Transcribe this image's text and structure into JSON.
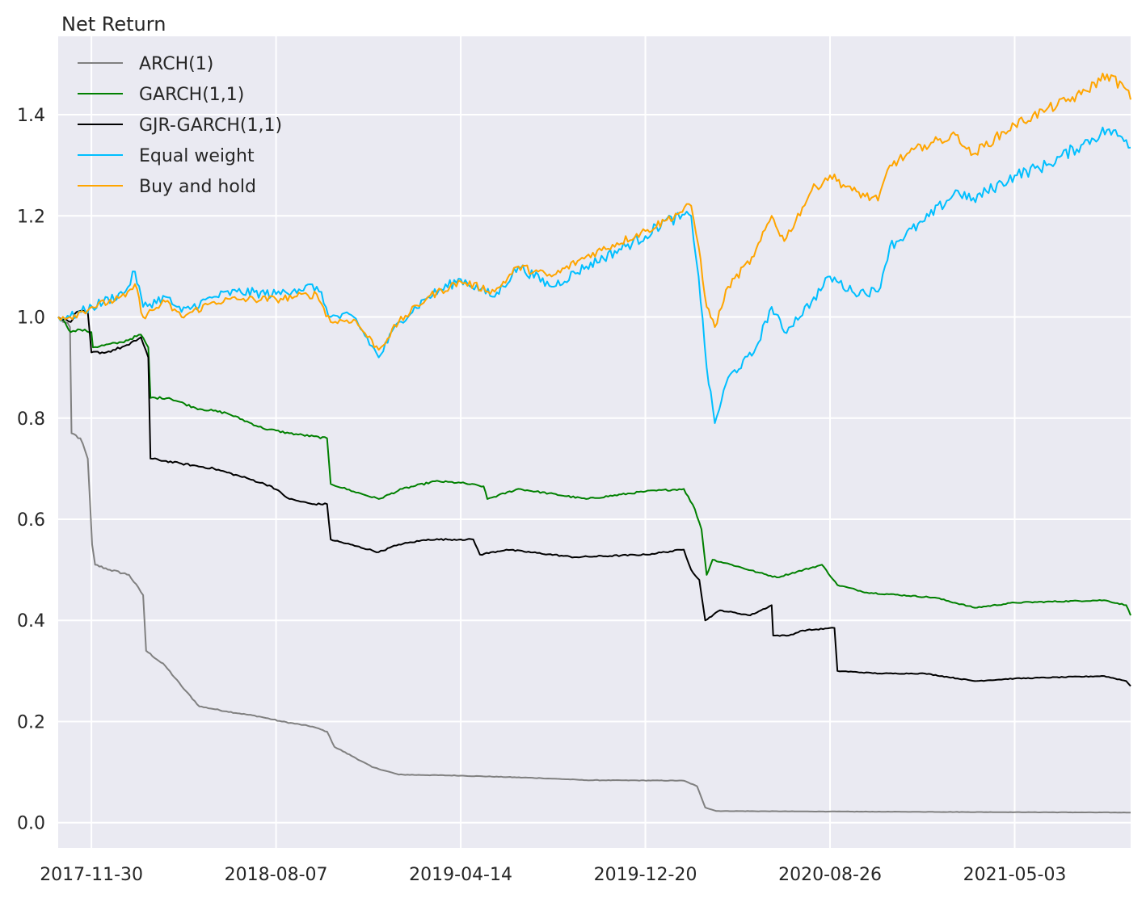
{
  "chart_data": {
    "type": "line",
    "title": "Net Return",
    "xlabel": "",
    "ylabel": "",
    "x_ticks": [
      "2017-11-30",
      "2018-08-07",
      "2019-04-14",
      "2019-12-20",
      "2020-08-26",
      "2021-05-03"
    ],
    "xlim": [
      "2017-10-16",
      "2021-10-07"
    ],
    "y_ticks": [
      "0.0",
      "0.2",
      "0.4",
      "0.6",
      "0.8",
      "1.0",
      "1.2",
      "1.4"
    ],
    "ylim": [
      -0.05,
      1.555
    ],
    "grid": true,
    "legend_position": "top-left",
    "series": [
      {
        "name": "ARCH(1)",
        "color": "#808080",
        "points": [
          [
            "2017-10-16",
            1.0
          ],
          [
            "2017-11-01",
            0.98
          ],
          [
            "2017-11-03",
            0.77
          ],
          [
            "2017-11-15",
            0.76
          ],
          [
            "2017-11-25",
            0.72
          ],
          [
            "2017-12-01",
            0.55
          ],
          [
            "2017-12-05",
            0.51
          ],
          [
            "2017-12-25",
            0.5
          ],
          [
            "2018-01-20",
            0.49
          ],
          [
            "2018-02-08",
            0.45
          ],
          [
            "2018-02-12",
            0.34
          ],
          [
            "2018-03-10",
            0.31
          ],
          [
            "2018-04-01",
            0.27
          ],
          [
            "2018-04-25",
            0.23
          ],
          [
            "2018-06-01",
            0.22
          ],
          [
            "2018-07-15",
            0.21
          ],
          [
            "2018-08-15",
            0.2
          ],
          [
            "2018-09-25",
            0.19
          ],
          [
            "2018-10-15",
            0.18
          ],
          [
            "2018-10-25",
            0.15
          ],
          [
            "2018-11-20",
            0.13
          ],
          [
            "2018-12-15",
            0.11
          ],
          [
            "2019-01-20",
            0.095
          ],
          [
            "2019-04-14",
            0.093
          ],
          [
            "2019-08-01",
            0.088
          ],
          [
            "2019-10-01",
            0.084
          ],
          [
            "2020-02-10",
            0.083
          ],
          [
            "2020-02-28",
            0.072
          ],
          [
            "2020-03-10",
            0.03
          ],
          [
            "2020-03-25",
            0.023
          ],
          [
            "2020-08-26",
            0.022
          ],
          [
            "2021-03-01",
            0.021
          ],
          [
            "2021-10-07",
            0.02
          ]
        ]
      },
      {
        "name": "GARCH(1,1)",
        "color": "#008000",
        "points": [
          [
            "2017-10-16",
            1.0
          ],
          [
            "2017-10-25",
            0.99
          ],
          [
            "2017-11-02",
            0.97
          ],
          [
            "2017-11-15",
            0.975
          ],
          [
            "2017-11-30",
            0.97
          ],
          [
            "2017-12-02",
            0.94
          ],
          [
            "2018-01-10",
            0.95
          ],
          [
            "2018-02-05",
            0.965
          ],
          [
            "2018-02-15",
            0.94
          ],
          [
            "2018-02-18",
            0.84
          ],
          [
            "2018-03-15",
            0.84
          ],
          [
            "2018-04-20",
            0.82
          ],
          [
            "2018-06-01",
            0.81
          ],
          [
            "2018-07-20",
            0.78
          ],
          [
            "2018-08-25",
            0.77
          ],
          [
            "2018-10-15",
            0.76
          ],
          [
            "2018-10-20",
            0.67
          ],
          [
            "2018-11-20",
            0.655
          ],
          [
            "2018-12-24",
            0.64
          ],
          [
            "2019-01-25",
            0.66
          ],
          [
            "2019-03-10",
            0.675
          ],
          [
            "2019-04-14",
            0.672
          ],
          [
            "2019-05-15",
            0.665
          ],
          [
            "2019-05-20",
            0.64
          ],
          [
            "2019-07-01",
            0.66
          ],
          [
            "2019-10-01",
            0.64
          ],
          [
            "2019-12-20",
            0.655
          ],
          [
            "2020-02-10",
            0.66
          ],
          [
            "2020-02-25",
            0.62
          ],
          [
            "2020-03-05",
            0.58
          ],
          [
            "2020-03-12",
            0.49
          ],
          [
            "2020-03-20",
            0.52
          ],
          [
            "2020-04-15",
            0.51
          ],
          [
            "2020-05-20",
            0.495
          ],
          [
            "2020-06-15",
            0.485
          ],
          [
            "2020-08-15",
            0.51
          ],
          [
            "2020-09-05",
            0.47
          ],
          [
            "2020-10-15",
            0.455
          ],
          [
            "2021-01-15",
            0.445
          ],
          [
            "2021-03-10",
            0.425
          ],
          [
            "2021-05-03",
            0.435
          ],
          [
            "2021-09-01",
            0.44
          ],
          [
            "2021-10-01",
            0.43
          ],
          [
            "2021-10-07",
            0.41
          ]
        ]
      },
      {
        "name": "GJR-GARCH(1,1)",
        "color": "#000000",
        "points": [
          [
            "2017-10-16",
            1.0
          ],
          [
            "2017-11-02",
            0.99
          ],
          [
            "2017-11-10",
            1.01
          ],
          [
            "2017-11-25",
            1.01
          ],
          [
            "2017-11-30",
            0.93
          ],
          [
            "2017-12-20",
            0.93
          ],
          [
            "2018-01-20",
            0.945
          ],
          [
            "2018-02-05",
            0.96
          ],
          [
            "2018-02-15",
            0.92
          ],
          [
            "2018-02-18",
            0.72
          ],
          [
            "2018-04-01",
            0.71
          ],
          [
            "2018-05-15",
            0.7
          ],
          [
            "2018-07-01",
            0.68
          ],
          [
            "2018-08-01",
            0.665
          ],
          [
            "2018-08-25",
            0.64
          ],
          [
            "2018-09-25",
            0.63
          ],
          [
            "2018-10-15",
            0.63
          ],
          [
            "2018-10-20",
            0.56
          ],
          [
            "2018-12-24",
            0.535
          ],
          [
            "2019-01-20",
            0.55
          ],
          [
            "2019-03-01",
            0.56
          ],
          [
            "2019-04-14",
            0.56
          ],
          [
            "2019-05-01",
            0.56
          ],
          [
            "2019-05-10",
            0.53
          ],
          [
            "2019-06-15",
            0.54
          ],
          [
            "2019-09-15",
            0.525
          ],
          [
            "2019-12-20",
            0.53
          ],
          [
            "2020-02-10",
            0.54
          ],
          [
            "2020-02-20",
            0.5
          ],
          [
            "2020-03-02",
            0.48
          ],
          [
            "2020-03-10",
            0.4
          ],
          [
            "2020-03-30",
            0.42
          ],
          [
            "2020-05-10",
            0.41
          ],
          [
            "2020-06-08",
            0.43
          ],
          [
            "2020-06-10",
            0.37
          ],
          [
            "2020-07-01",
            0.37
          ],
          [
            "2020-07-20",
            0.38
          ],
          [
            "2020-09-01",
            0.385
          ],
          [
            "2020-09-05",
            0.3
          ],
          [
            "2020-11-01",
            0.295
          ],
          [
            "2021-01-01",
            0.295
          ],
          [
            "2021-03-10",
            0.28
          ],
          [
            "2021-05-03",
            0.285
          ],
          [
            "2021-09-01",
            0.29
          ],
          [
            "2021-10-01",
            0.28
          ],
          [
            "2021-10-07",
            0.27
          ]
        ]
      },
      {
        "name": "Equal weight",
        "color": "#00bfff",
        "points": [
          [
            "2017-10-16",
            1.0
          ],
          [
            "2017-11-01",
            1.0
          ],
          [
            "2017-12-01",
            1.02
          ],
          [
            "2018-01-15",
            1.05
          ],
          [
            "2018-01-28",
            1.09
          ],
          [
            "2018-02-08",
            1.02
          ],
          [
            "2018-03-10",
            1.04
          ],
          [
            "2018-04-01",
            1.01
          ],
          [
            "2018-05-15",
            1.04
          ],
          [
            "2018-06-15",
            1.05
          ],
          [
            "2018-08-07",
            1.045
          ],
          [
            "2018-09-01",
            1.055
          ],
          [
            "2018-10-01",
            1.06
          ],
          [
            "2018-10-20",
            1.0
          ],
          [
            "2018-11-20",
            1.0
          ],
          [
            "2018-12-24",
            0.92
          ],
          [
            "2019-01-20",
            0.99
          ],
          [
            "2019-03-01",
            1.04
          ],
          [
            "2019-04-14",
            1.075
          ],
          [
            "2019-05-30",
            1.04
          ],
          [
            "2019-07-01",
            1.1
          ],
          [
            "2019-08-15",
            1.06
          ],
          [
            "2019-10-01",
            1.1
          ],
          [
            "2019-12-20",
            1.16
          ],
          [
            "2020-01-15",
            1.19
          ],
          [
            "2020-02-20",
            1.2
          ],
          [
            "2020-03-01",
            1.08
          ],
          [
            "2020-03-12",
            0.9
          ],
          [
            "2020-03-23",
            0.79
          ],
          [
            "2020-04-10",
            0.88
          ],
          [
            "2020-05-15",
            0.93
          ],
          [
            "2020-06-08",
            1.02
          ],
          [
            "2020-06-25",
            0.97
          ],
          [
            "2020-08-01",
            1.03
          ],
          [
            "2020-08-26",
            1.08
          ],
          [
            "2020-09-25",
            1.05
          ],
          [
            "2020-10-30",
            1.05
          ],
          [
            "2020-11-15",
            1.14
          ],
          [
            "2021-01-01",
            1.19
          ],
          [
            "2021-02-15",
            1.25
          ],
          [
            "2021-03-05",
            1.23
          ],
          [
            "2021-05-03",
            1.28
          ],
          [
            "2021-06-15",
            1.3
          ],
          [
            "2021-08-01",
            1.34
          ],
          [
            "2021-09-05",
            1.37
          ],
          [
            "2021-10-01",
            1.35
          ],
          [
            "2021-10-07",
            1.335
          ]
        ]
      },
      {
        "name": "Buy and hold",
        "color": "#ffa500",
        "points": [
          [
            "2017-10-16",
            1.0
          ],
          [
            "2017-11-01",
            1.0
          ],
          [
            "2017-12-01",
            1.02
          ],
          [
            "2018-01-15",
            1.04
          ],
          [
            "2018-01-28",
            1.065
          ],
          [
            "2018-02-08",
            1.0
          ],
          [
            "2018-03-10",
            1.03
          ],
          [
            "2018-04-01",
            1.0
          ],
          [
            "2018-05-15",
            1.03
          ],
          [
            "2018-06-15",
            1.035
          ],
          [
            "2018-08-07",
            1.035
          ],
          [
            "2018-09-01",
            1.04
          ],
          [
            "2018-10-01",
            1.045
          ],
          [
            "2018-10-20",
            0.99
          ],
          [
            "2018-11-20",
            0.995
          ],
          [
            "2018-12-24",
            0.935
          ],
          [
            "2019-01-20",
            0.99
          ],
          [
            "2019-03-01",
            1.04
          ],
          [
            "2019-04-14",
            1.07
          ],
          [
            "2019-05-30",
            1.05
          ],
          [
            "2019-07-01",
            1.1
          ],
          [
            "2019-08-15",
            1.08
          ],
          [
            "2019-10-01",
            1.12
          ],
          [
            "2019-12-20",
            1.17
          ],
          [
            "2020-01-15",
            1.19
          ],
          [
            "2020-02-20",
            1.22
          ],
          [
            "2020-03-01",
            1.14
          ],
          [
            "2020-03-12",
            1.02
          ],
          [
            "2020-03-23",
            0.98
          ],
          [
            "2020-04-10",
            1.06
          ],
          [
            "2020-05-15",
            1.12
          ],
          [
            "2020-06-08",
            1.2
          ],
          [
            "2020-06-25",
            1.15
          ],
          [
            "2020-08-01",
            1.25
          ],
          [
            "2020-08-26",
            1.28
          ],
          [
            "2020-09-25",
            1.25
          ],
          [
            "2020-10-30",
            1.23
          ],
          [
            "2020-11-15",
            1.3
          ],
          [
            "2021-01-01",
            1.34
          ],
          [
            "2021-02-15",
            1.36
          ],
          [
            "2021-03-05",
            1.32
          ],
          [
            "2021-05-03",
            1.38
          ],
          [
            "2021-06-15",
            1.41
          ],
          [
            "2021-08-01",
            1.44
          ],
          [
            "2021-09-05",
            1.48
          ],
          [
            "2021-10-01",
            1.45
          ],
          [
            "2021-10-07",
            1.43
          ]
        ]
      }
    ]
  }
}
